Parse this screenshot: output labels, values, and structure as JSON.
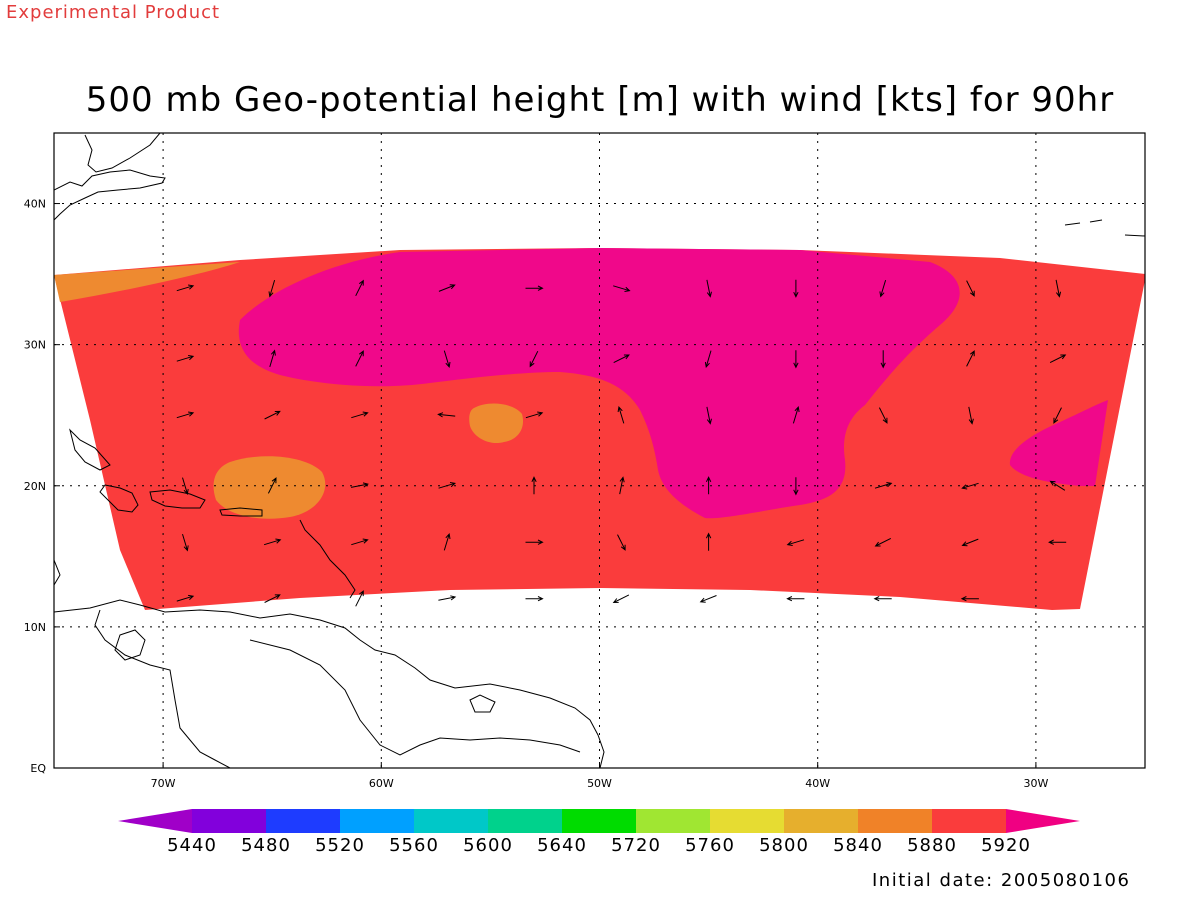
{
  "watermark": "Experimental Product",
  "title": "500 mb Geo-potential height [m] with wind [kts] for 90hr",
  "initial_date": "Initial date: 2005080106",
  "colors": {
    "c5840": "#e8a830",
    "c5880": "#ee8a30",
    "c5920": "#fa3c3c",
    "c_above": "#f0088a",
    "land": "#ffffff",
    "coast": "#000000"
  },
  "colorbar": {
    "levels": [
      "5440",
      "5480",
      "5520",
      "5560",
      "5600",
      "5640",
      "5720",
      "5760",
      "5800",
      "5840",
      "5880",
      "5920"
    ],
    "colors": [
      "#a000c8",
      "#8200dc",
      "#1e3cff",
      "#00a0ff",
      "#00c8c8",
      "#00d28c",
      "#00dc00",
      "#a0e632",
      "#e6dc32",
      "#e6af2d",
      "#f08228",
      "#fa3c3c",
      "#f00082"
    ]
  },
  "chart_data": {
    "type": "heatmap",
    "title": "500 mb Geo-potential height [m] with wind [kts] for 90hr",
    "variable": "500 mb geopotential height (m) with wind vectors (kts)",
    "forecast_hour": "90hr",
    "x_axis": {
      "label": "",
      "range": [
        -75,
        -25
      ],
      "ticks": [
        "70W",
        "60W",
        "50W",
        "40W",
        "30W"
      ]
    },
    "y_axis": {
      "label": "",
      "range": [
        0,
        45
      ],
      "ticks": [
        "EQ",
        "10N",
        "20N",
        "30N",
        "40N"
      ]
    },
    "grid": true,
    "shaded_regions": [
      {
        "range": "5880-5920",
        "location": "small patch near 73W 34N (NW corner)"
      },
      {
        "range": "5880-5920",
        "location": "blob near 65W 20N"
      },
      {
        "range": "5880-5920",
        "location": "small blob near 55W 24N"
      },
      {
        "range": "5920-5960 (background)",
        "location": "most of domain 11N-35N"
      },
      {
        "range": ">5960",
        "location": "large high centered 48W-35W, 20N-37N"
      },
      {
        "range": ">5960",
        "location": "small patch near 28W 22N"
      }
    ],
    "wind_vectors": [
      {
        "lon": -69,
        "lat": 34,
        "u": 1,
        "v": 0.3
      },
      {
        "lon": -65,
        "lat": 34,
        "u": -0.3,
        "v": -1
      },
      {
        "lon": -61,
        "lat": 34,
        "u": 0.5,
        "v": 1
      },
      {
        "lon": -57,
        "lat": 34,
        "u": 1,
        "v": 0.4
      },
      {
        "lon": -53,
        "lat": 34,
        "u": 1,
        "v": 0
      },
      {
        "lon": -49,
        "lat": 34,
        "u": 1,
        "v": -0.3
      },
      {
        "lon": -45,
        "lat": 34,
        "u": 0.2,
        "v": -1
      },
      {
        "lon": -41,
        "lat": 34,
        "u": 0,
        "v": -1
      },
      {
        "lon": -37,
        "lat": 34,
        "u": -0.3,
        "v": -1
      },
      {
        "lon": -33,
        "lat": 34,
        "u": 0.5,
        "v": -1
      },
      {
        "lon": -29,
        "lat": 34,
        "u": 0.2,
        "v": -1
      },
      {
        "lon": -69,
        "lat": 29,
        "u": 1,
        "v": 0.3
      },
      {
        "lon": -65,
        "lat": 29,
        "u": 0.3,
        "v": 1
      },
      {
        "lon": -61,
        "lat": 29,
        "u": 0.5,
        "v": 1
      },
      {
        "lon": -57,
        "lat": 29,
        "u": 0.3,
        "v": -1
      },
      {
        "lon": -53,
        "lat": 29,
        "u": -0.5,
        "v": -1
      },
      {
        "lon": -49,
        "lat": 29,
        "u": 1,
        "v": 0.5
      },
      {
        "lon": -45,
        "lat": 29,
        "u": -0.3,
        "v": -1
      },
      {
        "lon": -41,
        "lat": 29,
        "u": 0,
        "v": -1
      },
      {
        "lon": -37,
        "lat": 29,
        "u": 0,
        "v": -1
      },
      {
        "lon": -33,
        "lat": 29,
        "u": 0.5,
        "v": 1
      },
      {
        "lon": -29,
        "lat": 29,
        "u": 1,
        "v": 0.5
      },
      {
        "lon": -69,
        "lat": 25,
        "u": 1,
        "v": 0.3
      },
      {
        "lon": -65,
        "lat": 25,
        "u": 1,
        "v": 0.5
      },
      {
        "lon": -61,
        "lat": 25,
        "u": 1,
        "v": 0.3
      },
      {
        "lon": -57,
        "lat": 25,
        "u": -1,
        "v": 0.1
      },
      {
        "lon": -53,
        "lat": 25,
        "u": 1,
        "v": 0.3
      },
      {
        "lon": -49,
        "lat": 25,
        "u": -0.3,
        "v": 1
      },
      {
        "lon": -45,
        "lat": 25,
        "u": 0.2,
        "v": -1
      },
      {
        "lon": -41,
        "lat": 25,
        "u": 0.3,
        "v": 1
      },
      {
        "lon": -37,
        "lat": 25,
        "u": 0.5,
        "v": -1
      },
      {
        "lon": -33,
        "lat": 25,
        "u": 0.2,
        "v": -1
      },
      {
        "lon": -29,
        "lat": 25,
        "u": -0.5,
        "v": -1
      },
      {
        "lon": -69,
        "lat": 20,
        "u": 0.3,
        "v": -1
      },
      {
        "lon": -65,
        "lat": 20,
        "u": 0.5,
        "v": 1
      },
      {
        "lon": -61,
        "lat": 20,
        "u": 1,
        "v": 0.2
      },
      {
        "lon": -57,
        "lat": 20,
        "u": 1,
        "v": 0.3
      },
      {
        "lon": -53,
        "lat": 20,
        "u": 0,
        "v": 1
      },
      {
        "lon": -49,
        "lat": 20,
        "u": 0.2,
        "v": 1
      },
      {
        "lon": -45,
        "lat": 20,
        "u": 0,
        "v": 1
      },
      {
        "lon": -41,
        "lat": 20,
        "u": 0,
        "v": -1
      },
      {
        "lon": -37,
        "lat": 20,
        "u": 1,
        "v": 0.3
      },
      {
        "lon": -33,
        "lat": 20,
        "u": -1,
        "v": -0.3
      },
      {
        "lon": -29,
        "lat": 20,
        "u": -0.8,
        "v": 0.5
      },
      {
        "lon": -69,
        "lat": 16,
        "u": 0.3,
        "v": -1
      },
      {
        "lon": -65,
        "lat": 16,
        "u": 1,
        "v": 0.3
      },
      {
        "lon": -61,
        "lat": 16,
        "u": 1,
        "v": 0.3
      },
      {
        "lon": -57,
        "lat": 16,
        "u": 0.3,
        "v": 1
      },
      {
        "lon": -53,
        "lat": 16,
        "u": 1,
        "v": 0
      },
      {
        "lon": -49,
        "lat": 16,
        "u": 0.5,
        "v": -1
      },
      {
        "lon": -45,
        "lat": 16,
        "u": 0,
        "v": 1
      },
      {
        "lon": -41,
        "lat": 16,
        "u": -1,
        "v": -0.3
      },
      {
        "lon": -37,
        "lat": 16,
        "u": -1,
        "v": -0.5
      },
      {
        "lon": -33,
        "lat": 16,
        "u": -1,
        "v": -0.4
      },
      {
        "lon": -29,
        "lat": 16,
        "u": -1,
        "v": 0
      },
      {
        "lon": -69,
        "lat": 12,
        "u": 1,
        "v": 0.3
      },
      {
        "lon": -65,
        "lat": 12,
        "u": 1,
        "v": 0.5
      },
      {
        "lon": -61,
        "lat": 12,
        "u": 0.5,
        "v": 1
      },
      {
        "lon": -57,
        "lat": 12,
        "u": 1,
        "v": 0.2
      },
      {
        "lon": -53,
        "lat": 12,
        "u": 1,
        "v": 0
      },
      {
        "lon": -49,
        "lat": 12,
        "u": -1,
        "v": -0.5
      },
      {
        "lon": -45,
        "lat": 12,
        "u": -1,
        "v": -0.4
      },
      {
        "lon": -41,
        "lat": 12,
        "u": -1,
        "v": 0
      },
      {
        "lon": -37,
        "lat": 12,
        "u": -1,
        "v": 0
      },
      {
        "lon": -33,
        "lat": 12,
        "u": -1,
        "v": 0
      }
    ]
  }
}
